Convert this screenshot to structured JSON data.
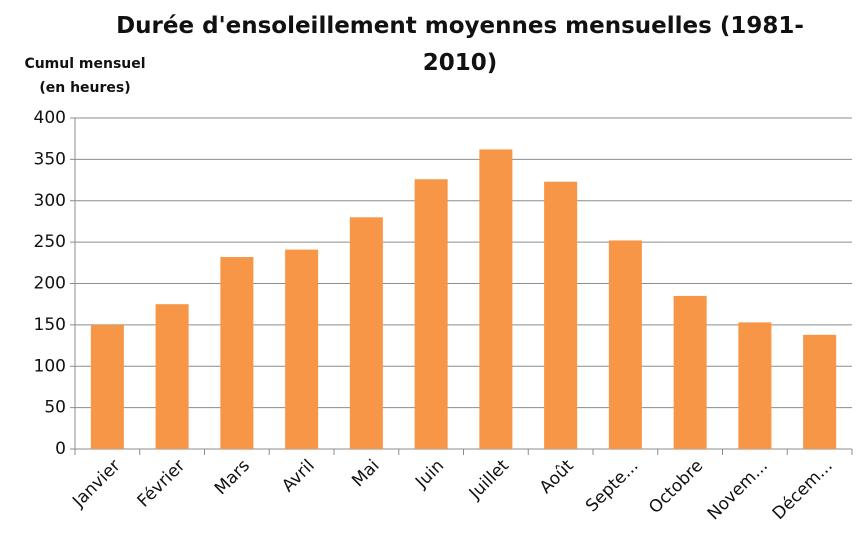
{
  "chart_data": {
    "type": "bar",
    "title": "Durée d'ensoleillement moyennes mensuelles (1981-2010)",
    "y_label": "Cumul mensuel (en heures)",
    "categories": [
      "Janvier",
      "Février",
      "Mars",
      "Avril",
      "Mai",
      "Juin",
      "Juillet",
      "Août",
      "Septe...",
      "Octobre",
      "Novem...",
      "Décem..."
    ],
    "values": [
      150,
      175,
      232,
      241,
      280,
      326,
      362,
      323,
      252,
      185,
      153,
      138
    ],
    "color": "#f79646",
    "ylim": [
      0,
      400
    ],
    "yticks": [
      0,
      50,
      100,
      150,
      200,
      250,
      300,
      350,
      400
    ],
    "grid": true
  }
}
